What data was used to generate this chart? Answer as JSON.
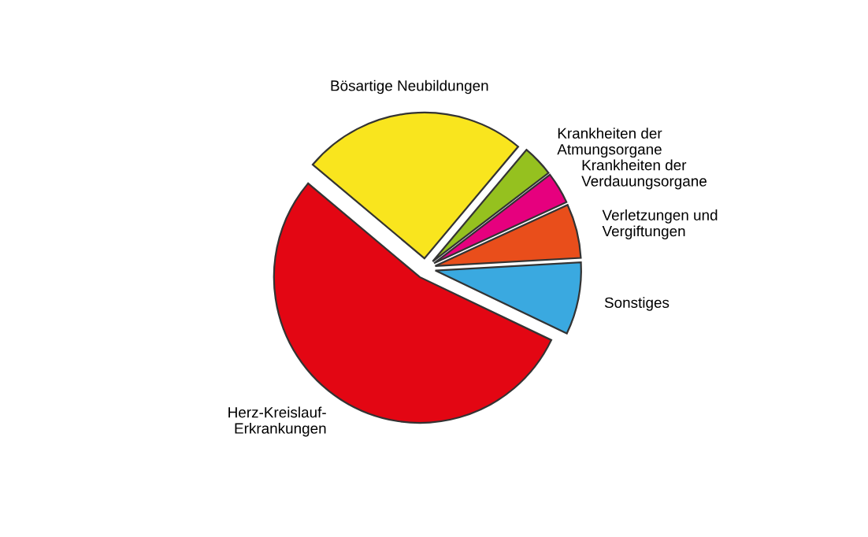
{
  "chart_data": {
    "type": "pie",
    "categories": [
      "Herz-Kreislauf-\nErkrankungen",
      "Sonstiges",
      "Verletzungen und\nVergiftungen",
      "Krankheiten der\nVerdauungsorgane",
      "Krankheiten der\nAtmungsorgane",
      "Bösartige Neubildungen"
    ],
    "values": [
      54,
      8,
      6,
      3.5,
      3.5,
      25
    ],
    "colors": [
      "#e30613",
      "#3aa9e0",
      "#e94e1b",
      "#e6007e",
      "#95c11f",
      "#f9e51e"
    ],
    "legend": false
  }
}
